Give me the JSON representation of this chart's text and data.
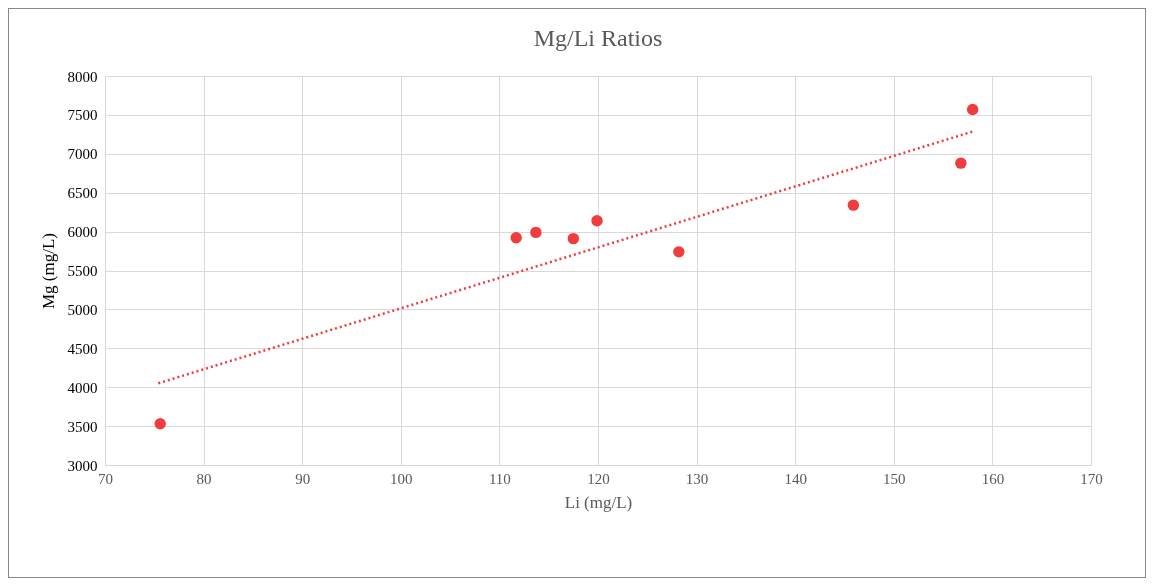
{
  "chart_data": {
    "type": "scatter",
    "title": "Mg/Li Ratios",
    "xlabel": "Li (mg/L)",
    "ylabel": "Mg (mg/L)",
    "xlim": [
      70,
      170
    ],
    "xticks": [
      70,
      80,
      90,
      100,
      110,
      120,
      130,
      140,
      150,
      160,
      170
    ],
    "ylim": [
      3000,
      8000
    ],
    "yticks": [
      3000,
      3500,
      4000,
      4500,
      5000,
      5500,
      6000,
      6500,
      7000,
      7500,
      8000
    ],
    "grid": true,
    "series": [
      {
        "type": "scatter",
        "marker": "circle",
        "color": "#f03c3c",
        "x": [
          75.6,
          111.7,
          113.7,
          117.5,
          119.9,
          128.2,
          145.9,
          156.8,
          158.0
        ],
        "values": [
          3530,
          5920,
          5990,
          5910,
          6140,
          5740,
          6340,
          6880,
          7570
        ]
      },
      {
        "type": "line",
        "line_style": "dotted",
        "color": "#f03c3c",
        "x": [
          75.4,
          158.1
        ],
        "values": [
          4050,
          7290
        ]
      }
    ]
  }
}
